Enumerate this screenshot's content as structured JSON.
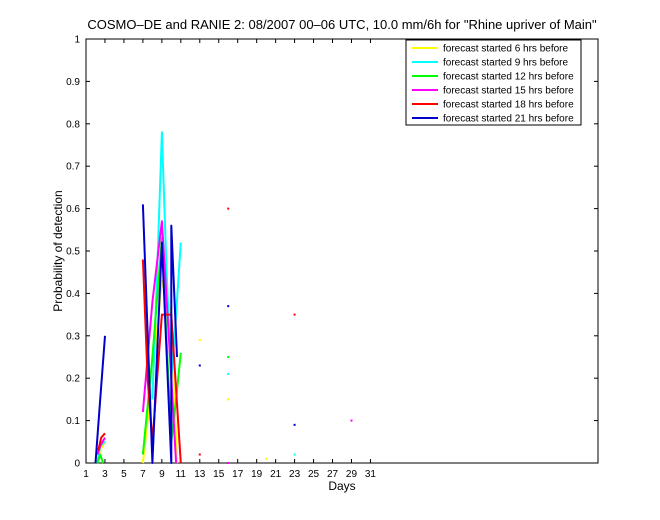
{
  "chart_data": {
    "type": "line",
    "title": "COSMO–DE and RANIE 2: 08/2007 00–06 UTC, 10.0 mm/6h for \"Rhine upriver of Main\"",
    "xlabel": "Days",
    "ylabel": "Probability of detection",
    "xlim": [
      1,
      55
    ],
    "ylim": [
      0,
      1
    ],
    "xticks": [
      1,
      3,
      5,
      7,
      9,
      11,
      13,
      15,
      17,
      19,
      21,
      23,
      25,
      27,
      29,
      31
    ],
    "yticks": [
      0,
      0.1,
      0.2,
      0.3,
      0.4,
      0.5,
      0.6,
      0.7,
      0.8,
      0.9,
      1
    ],
    "ytick_labels": [
      "0",
      "0.1",
      "0.2",
      "0.3",
      "0.4",
      "0.5",
      "0.6",
      "0.7",
      "0.8",
      "0.9",
      "1"
    ],
    "legend_position": "top-right",
    "series": [
      {
        "name": "forecast started 6 hrs before",
        "color": "#ffff00",
        "segments": [
          [
            [
              2.2,
              0
            ],
            [
              2.5,
              0.03
            ],
            [
              3,
              0.05
            ]
          ],
          [
            [
              7,
              0
            ],
            [
              8,
              0.2
            ],
            [
              9,
              0.43
            ],
            [
              10,
              0.35
            ],
            [
              10.6,
              0
            ]
          ]
        ],
        "points": [
          [
            13,
            0.29
          ],
          [
            16,
            0.15
          ],
          [
            20,
            0.01
          ]
        ]
      },
      {
        "name": "forecast started 9 hrs before",
        "color": "#00ffff",
        "segments": [
          [
            [
              2.2,
              0
            ],
            [
              2.5,
              0.04
            ],
            [
              3,
              0.05
            ]
          ],
          [
            [
              8,
              0.15
            ],
            [
              8.5,
              0.45
            ],
            [
              9,
              0.78
            ],
            [
              9.5,
              0.45
            ],
            [
              10,
              0.2
            ],
            [
              10.5,
              0.35
            ],
            [
              11,
              0.52
            ]
          ]
        ],
        "points": [
          [
            16,
            0.21
          ],
          [
            23,
            0.02
          ]
        ]
      },
      {
        "name": "forecast started 12 hrs before",
        "color": "#00ff00",
        "segments": [
          [
            [
              2.2,
              0
            ],
            [
              2.5,
              0.02
            ],
            [
              2.8,
              0
            ]
          ],
          [
            [
              7,
              0.02
            ],
            [
              8,
              0.25
            ],
            [
              9,
              0.53
            ],
            [
              10,
              0.05
            ],
            [
              10.5,
              0.15
            ],
            [
              11,
              0.26
            ]
          ]
        ],
        "points": [
          [
            16,
            0.25
          ]
        ]
      },
      {
        "name": "forecast started 15 hrs before",
        "color": "#ff00ff",
        "segments": [
          [
            [
              2.2,
              0.02
            ],
            [
              2.5,
              0.04
            ],
            [
              3,
              0.06
            ]
          ],
          [
            [
              7,
              0.12
            ],
            [
              8,
              0.38
            ],
            [
              9,
              0.57
            ],
            [
              10,
              0.2
            ],
            [
              10.5,
              0
            ]
          ]
        ],
        "points": [
          [
            16,
            0
          ],
          [
            29,
            0.1
          ]
        ]
      },
      {
        "name": "forecast started 18 hrs before",
        "color": "#ff0000",
        "segments": [
          [
            [
              2.3,
              0.03
            ],
            [
              2.6,
              0.06
            ],
            [
              3,
              0.07
            ]
          ],
          [
            [
              7,
              0.48
            ],
            [
              7.5,
              0.2
            ],
            [
              8,
              0.05
            ],
            [
              9,
              0.35
            ],
            [
              10,
              0.35
            ],
            [
              11,
              0
            ]
          ]
        ],
        "points": [
          [
            13,
            0.02
          ],
          [
            16,
            0.6
          ],
          [
            23,
            0.35
          ]
        ]
      },
      {
        "name": "forecast started 21 hrs before",
        "color": "#0000cc",
        "segments": [
          [
            [
              2,
              0
            ],
            [
              2.5,
              0.15
            ],
            [
              3,
              0.3
            ]
          ],
          [
            [
              7,
              0.61
            ],
            [
              8,
              0
            ],
            [
              9,
              0.52
            ],
            [
              10,
              0
            ],
            [
              10,
              0.56
            ],
            [
              10.6,
              0.25
            ]
          ]
        ],
        "points": [
          [
            13,
            0.23
          ],
          [
            16,
            0.37
          ],
          [
            23,
            0.09
          ]
        ]
      }
    ]
  }
}
